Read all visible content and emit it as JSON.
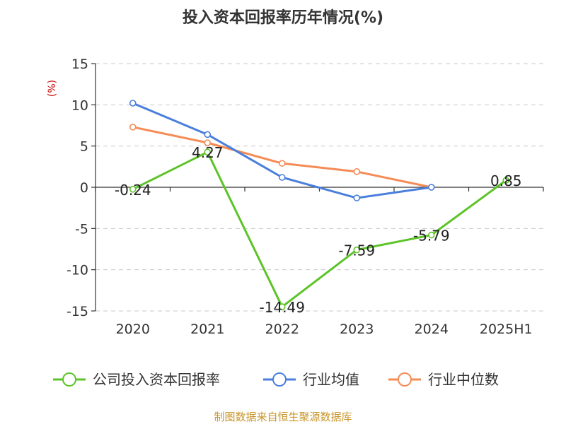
{
  "chart_data": {
    "type": "line",
    "title": "投入资本回报率历年情况(%)",
    "ylabel": "(%)",
    "xlabel": "",
    "categories": [
      "2020",
      "2021",
      "2022",
      "2023",
      "2024",
      "2025H1"
    ],
    "ylim": [
      -15,
      15
    ],
    "yticks": [
      15,
      10,
      5,
      0,
      -5,
      -10,
      -15
    ],
    "grid": true,
    "legend_position": "bottom",
    "series": [
      {
        "name": "公司投入资本回报率",
        "color": "#5cc428",
        "values": [
          -0.24,
          4.27,
          -14.49,
          -7.59,
          -5.79,
          0.85
        ],
        "data_labels": [
          "-0.24",
          "4.27",
          "-14.49",
          "-7.59",
          "-5.79",
          "0.85"
        ]
      },
      {
        "name": "行业均值",
        "color": "#4a7fdc",
        "values": [
          10.2,
          6.4,
          1.2,
          -1.3,
          0.0,
          null
        ]
      },
      {
        "name": "行业中位数",
        "color": "#f58b55",
        "values": [
          7.3,
          5.4,
          2.9,
          1.9,
          0.0,
          null
        ]
      }
    ],
    "source": "制图数据来自恒生聚源数据库"
  }
}
